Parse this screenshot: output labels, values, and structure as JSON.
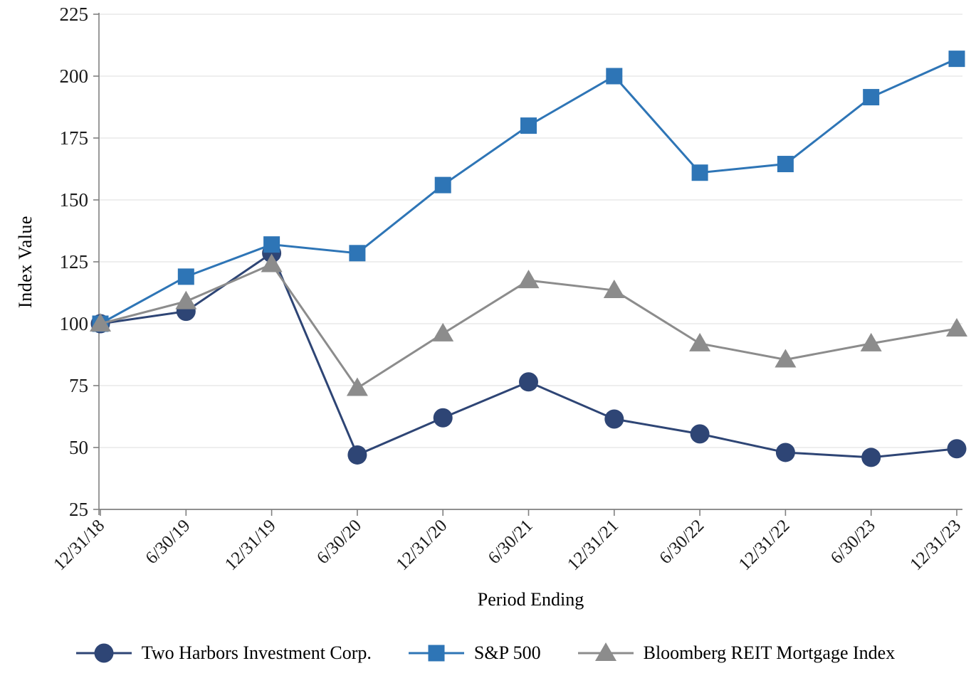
{
  "chart_data": {
    "type": "line",
    "title": "",
    "xlabel": "Period Ending",
    "ylabel": "Index Value",
    "categories": [
      "12/31/18",
      "6/30/19",
      "12/31/19",
      "6/30/20",
      "12/31/20",
      "6/30/21",
      "12/31/21",
      "6/30/22",
      "12/31/22",
      "6/30/23",
      "12/31/23"
    ],
    "y_ticks": [
      25,
      50,
      75,
      100,
      125,
      150,
      175,
      200,
      225
    ],
    "ylim": [
      25,
      225
    ],
    "grid": "horizontal",
    "legend_position": "bottom",
    "series": [
      {
        "name": "Two Harbors Investment Corp.",
        "marker": "circle",
        "color": "#2E4575",
        "values": [
          100,
          105,
          128.5,
          47,
          62,
          76.5,
          61.5,
          55.5,
          48,
          46,
          49.5
        ]
      },
      {
        "name": "S&P 500",
        "marker": "square",
        "color": "#2E75B6",
        "values": [
          100,
          119,
          132,
          128.5,
          156,
          180,
          200,
          161,
          164.5,
          191.5,
          207
        ]
      },
      {
        "name": "Bloomberg REIT Mortgage Index",
        "marker": "triangle",
        "color": "#8C8C8C",
        "values": [
          100,
          109,
          124,
          74,
          96,
          117.5,
          113.5,
          92,
          85.5,
          92,
          98
        ]
      }
    ],
    "axis_color": "#808080",
    "gridline_color": "#E3E3E3",
    "tick_label_color": "#1a1a1a"
  }
}
